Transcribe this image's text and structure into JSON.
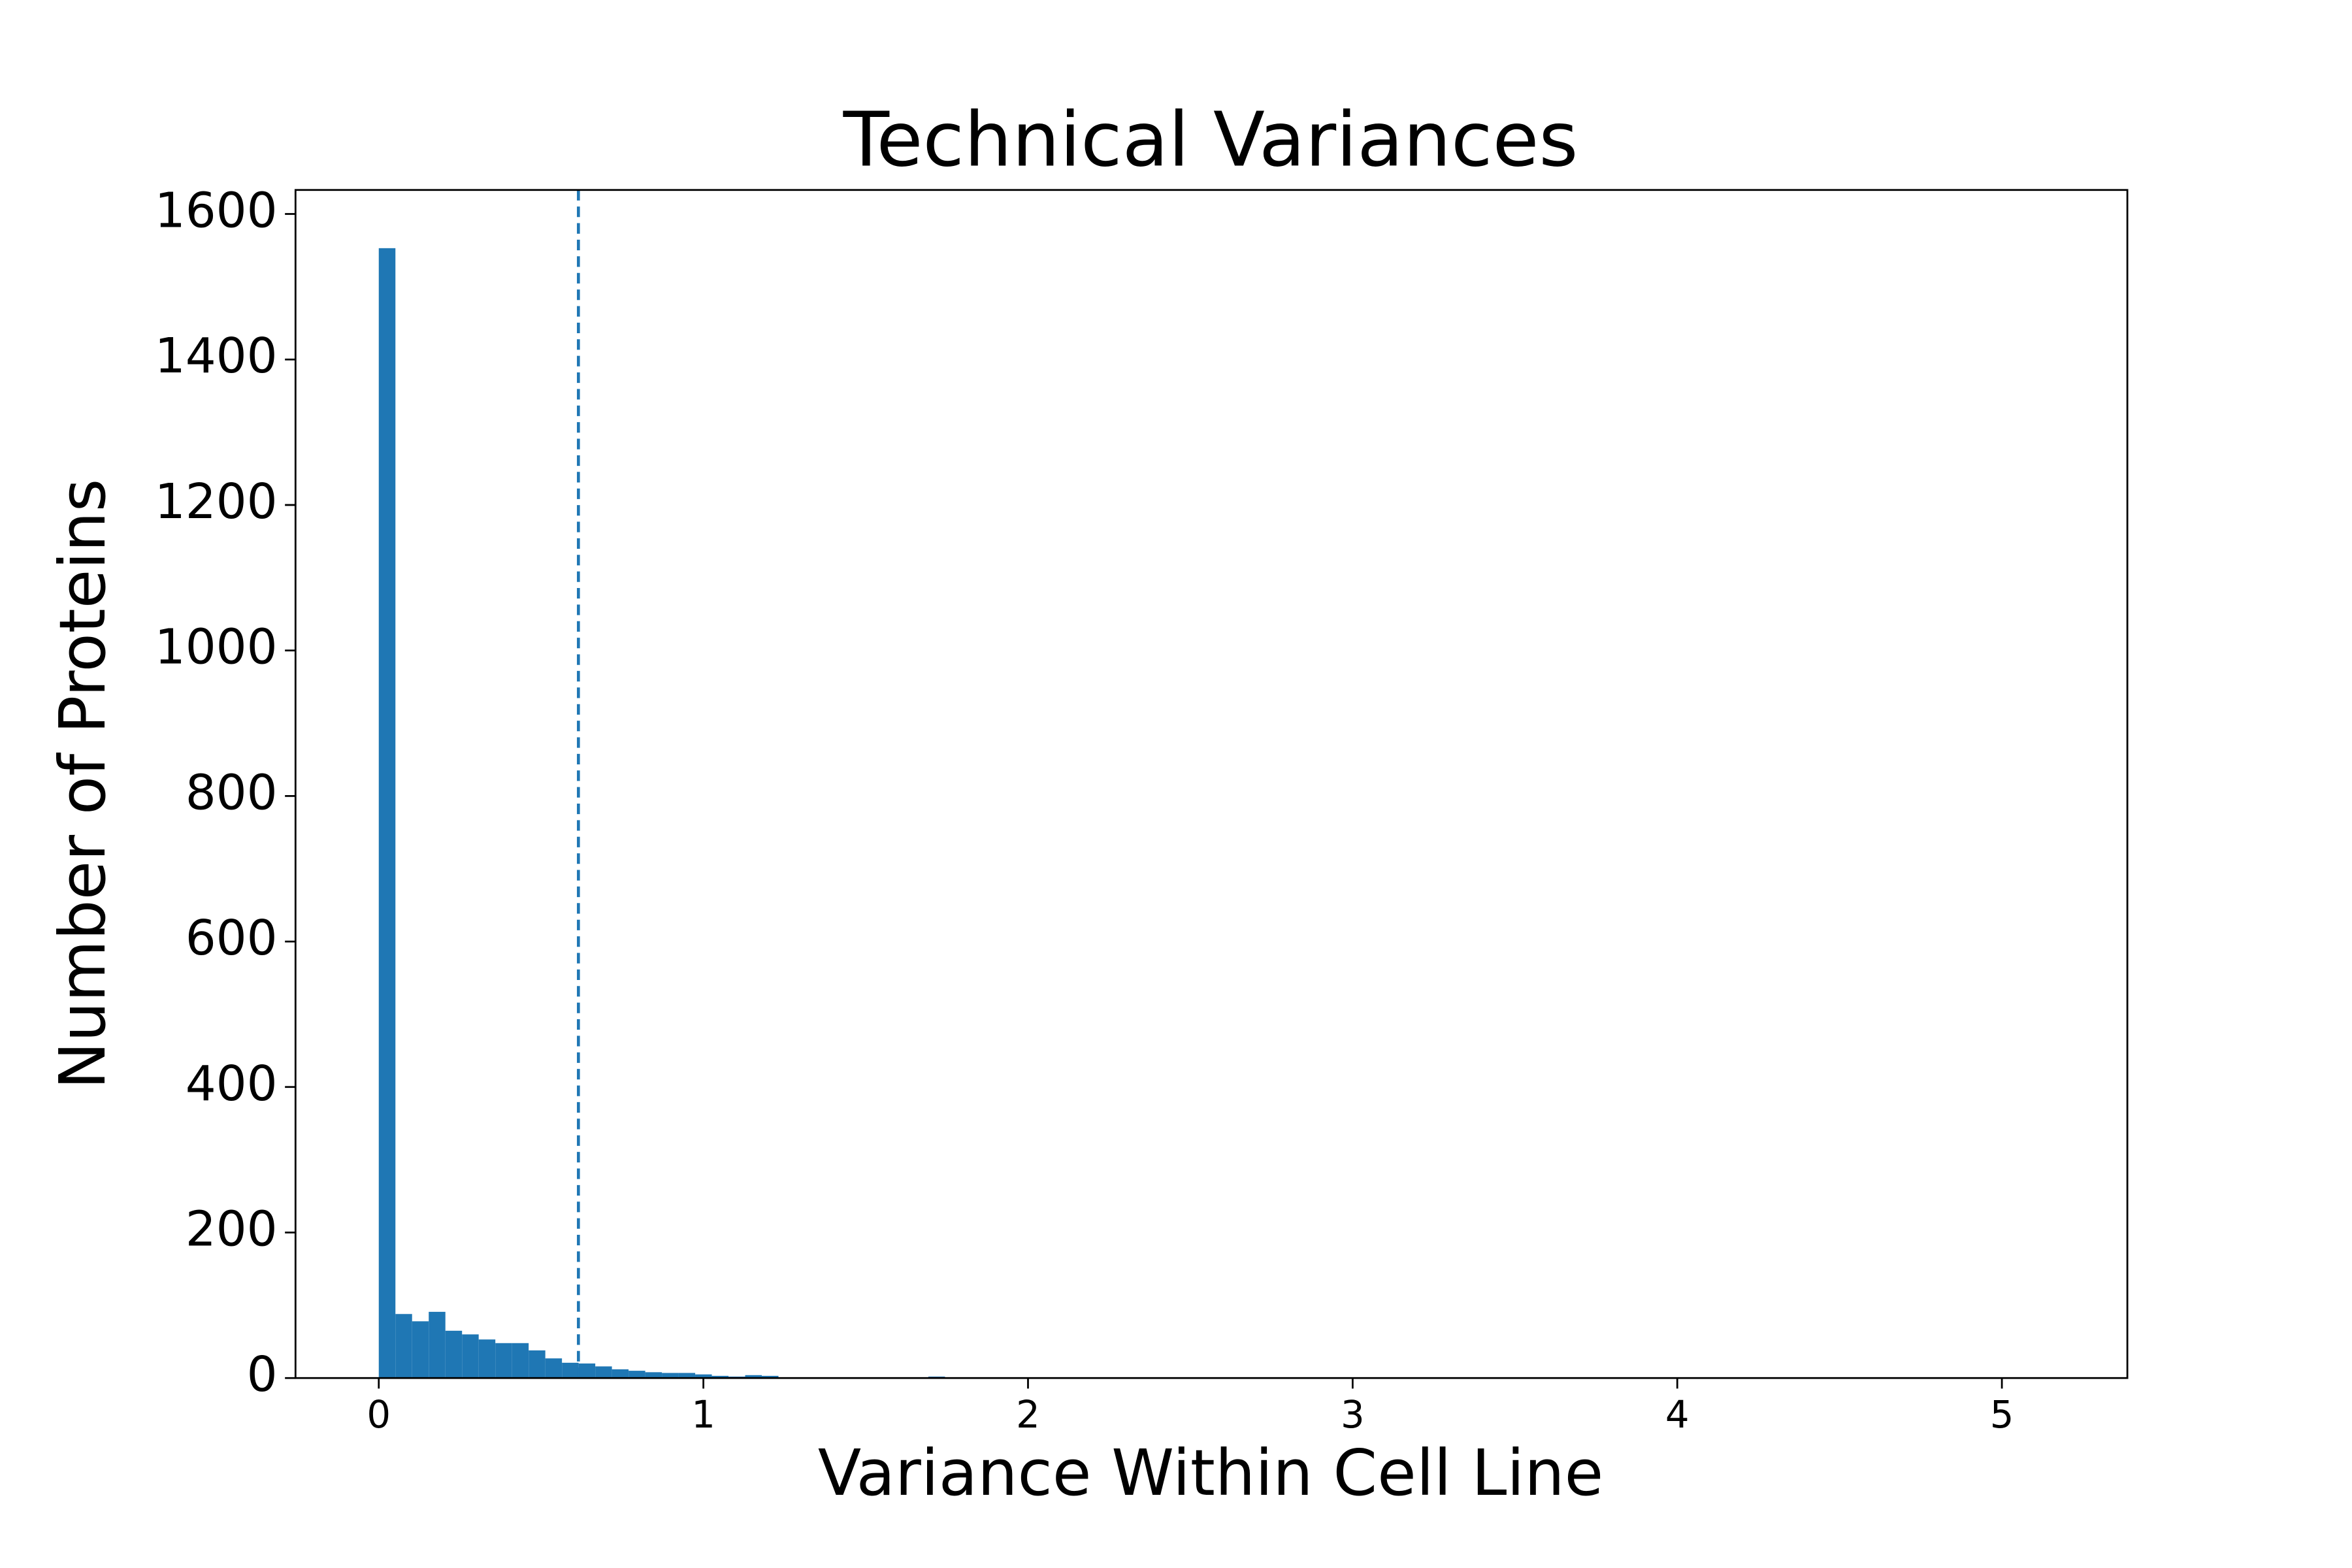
{
  "chart_data": {
    "type": "histogram",
    "title": "Technical Variances",
    "x_label": "Variance Within Cell Line",
    "y_label": "Number of Proteins",
    "color": "#1f77b4",
    "bins": [
      0,
      0.0513,
      0.1026,
      0.1539,
      0.2052,
      0.2565,
      0.3078,
      0.3591,
      0.4104,
      0.4617,
      0.513,
      0.5643,
      0.6156,
      0.6669,
      0.7182,
      0.7695,
      0.8208,
      0.8721,
      0.9234,
      0.9747,
      1.026,
      1.0773,
      1.1286,
      1.1799,
      1.2312,
      1.2825,
      1.3338,
      1.3851,
      1.4364,
      1.4877,
      1.539,
      1.5903,
      1.6416,
      1.6929,
      1.7442,
      1.7955,
      1.8468,
      1.8981,
      1.9494,
      2.0007,
      2.052,
      2.1033,
      2.1546,
      2.2059,
      2.2572,
      2.3085,
      2.3598,
      2.4111,
      2.4624,
      2.5137,
      2.565,
      2.6163,
      2.6676,
      2.7189,
      2.7702,
      2.8215,
      2.8728,
      2.9241,
      2.9754,
      3.0267,
      3.078,
      3.1293,
      3.1806,
      3.2319,
      3.2832,
      3.3345,
      3.3858,
      3.4371,
      3.4884,
      3.5397,
      3.591,
      3.6423,
      3.6936,
      3.7449,
      3.7962,
      3.8475,
      3.8988,
      3.9501,
      4.0014,
      4.0527,
      4.104,
      4.1553,
      4.2066,
      4.2579,
      4.3092,
      4.3605,
      4.4118,
      4.4631,
      4.5144,
      4.5657,
      4.617,
      4.6683,
      4.7196,
      4.7709,
      4.8222,
      4.8735,
      4.9248,
      4.9761,
      5.0274,
      5.0787,
      5.13
    ],
    "values": [
      1553,
      88,
      78,
      91,
      65,
      60,
      53,
      48,
      48,
      38,
      27,
      21,
      20,
      16,
      12,
      10,
      8,
      7,
      7,
      5,
      3,
      2,
      4,
      3,
      1,
      1,
      1,
      0,
      0,
      0,
      0,
      0,
      1,
      2,
      0,
      0,
      0,
      0,
      0,
      1,
      0,
      0,
      0,
      0,
      0,
      0,
      0,
      0,
      0,
      0,
      0,
      0,
      0,
      0,
      0,
      0,
      0,
      0,
      0,
      0,
      0,
      0,
      0,
      0,
      0,
      0,
      0,
      0,
      0,
      0,
      0,
      0,
      0,
      0,
      0,
      0,
      0,
      0,
      0,
      0,
      0,
      0,
      0,
      0,
      0,
      0,
      0,
      0,
      0,
      0,
      0,
      0,
      0,
      0,
      0,
      0,
      0,
      0,
      0,
      1
    ],
    "threshold": 0.615,
    "xlim": [
      -0.2565,
      5.3865
    ],
    "ylim": [
      0,
      1633
    ],
    "xticks": [
      0,
      1,
      2,
      3,
      4,
      5
    ],
    "yticks": [
      0,
      200,
      400,
      600,
      800,
      1000,
      1200,
      1400,
      1600
    ],
    "grid": false
  }
}
